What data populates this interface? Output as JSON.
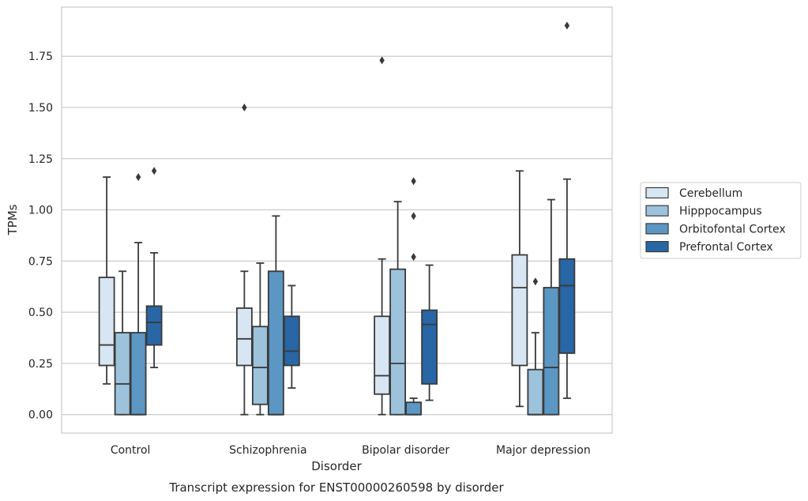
{
  "chart_data": {
    "type": "box",
    "title": "",
    "caption": "Transcript expression for ENST00000260598 by disorder",
    "xlabel": "Disorder",
    "ylabel": "TPMs",
    "ylim": [
      -0.09,
      1.99
    ],
    "yticks": [
      "0.00",
      "0.25",
      "0.50",
      "0.75",
      "1.00",
      "1.25",
      "1.50",
      "1.75"
    ],
    "ytick_values": [
      0,
      0.25,
      0.5,
      0.75,
      1.0,
      1.25,
      1.5,
      1.75
    ],
    "grid": true,
    "legend_position": "right",
    "categories": [
      "Control",
      "Schizophrenia",
      "Bipolar disorder",
      "Major depression"
    ],
    "series": [
      {
        "name": "Cerebellum",
        "color": "#d8e6f3",
        "boxes": [
          {
            "whislo": 0.15,
            "q1": 0.24,
            "med": 0.34,
            "q3": 0.67,
            "whishi": 1.16,
            "fliers": []
          },
          {
            "whislo": 0.0,
            "q1": 0.24,
            "med": 0.37,
            "q3": 0.52,
            "whishi": 0.7,
            "fliers": [
              1.5
            ]
          },
          {
            "whislo": 0.0,
            "q1": 0.1,
            "med": 0.19,
            "q3": 0.48,
            "whishi": 0.76,
            "fliers": [
              1.73
            ]
          },
          {
            "whislo": 0.04,
            "q1": 0.24,
            "med": 0.62,
            "q3": 0.78,
            "whishi": 1.19,
            "fliers": []
          }
        ]
      },
      {
        "name": "Hipppocampus",
        "color": "#9dc3dc",
        "boxes": [
          {
            "whislo": 0.0,
            "q1": 0.0,
            "med": 0.15,
            "q3": 0.4,
            "whishi": 0.7,
            "fliers": []
          },
          {
            "whislo": 0.0,
            "q1": 0.05,
            "med": 0.23,
            "q3": 0.43,
            "whishi": 0.74,
            "fliers": []
          },
          {
            "whislo": 0.0,
            "q1": 0.0,
            "med": 0.25,
            "q3": 0.71,
            "whishi": 1.04,
            "fliers": []
          },
          {
            "whislo": 0.0,
            "q1": 0.0,
            "med": 0.0,
            "q3": 0.22,
            "whishi": 0.4,
            "fliers": [
              0.65
            ]
          }
        ]
      },
      {
        "name": "Orbitofontal Cortex",
        "color": "#5c97c3",
        "boxes": [
          {
            "whislo": 0.0,
            "q1": 0.0,
            "med": 0.0,
            "q3": 0.4,
            "whishi": 0.84,
            "fliers": [
              1.16
            ]
          },
          {
            "whislo": 0.0,
            "q1": 0.0,
            "med": 0.0,
            "q3": 0.7,
            "whishi": 0.97,
            "fliers": []
          },
          {
            "whislo": 0.0,
            "q1": 0.0,
            "med": 0.0,
            "q3": 0.06,
            "whishi": 0.08,
            "fliers": [
              0.77,
              0.97,
              1.14
            ]
          },
          {
            "whislo": 0.0,
            "q1": 0.0,
            "med": 0.23,
            "q3": 0.62,
            "whishi": 1.05,
            "fliers": []
          }
        ]
      },
      {
        "name": "Prefrontal Cortex",
        "color": "#2866a5",
        "boxes": [
          {
            "whislo": 0.23,
            "q1": 0.34,
            "med": 0.45,
            "q3": 0.53,
            "whishi": 0.79,
            "fliers": [
              1.19
            ]
          },
          {
            "whislo": 0.13,
            "q1": 0.24,
            "med": 0.31,
            "q3": 0.48,
            "whishi": 0.63,
            "fliers": []
          },
          {
            "whislo": 0.07,
            "q1": 0.15,
            "med": 0.44,
            "q3": 0.51,
            "whishi": 0.73,
            "fliers": []
          },
          {
            "whislo": 0.08,
            "q1": 0.3,
            "med": 0.63,
            "q3": 0.76,
            "whishi": 1.15,
            "fliers": [
              1.9
            ]
          }
        ]
      }
    ]
  }
}
